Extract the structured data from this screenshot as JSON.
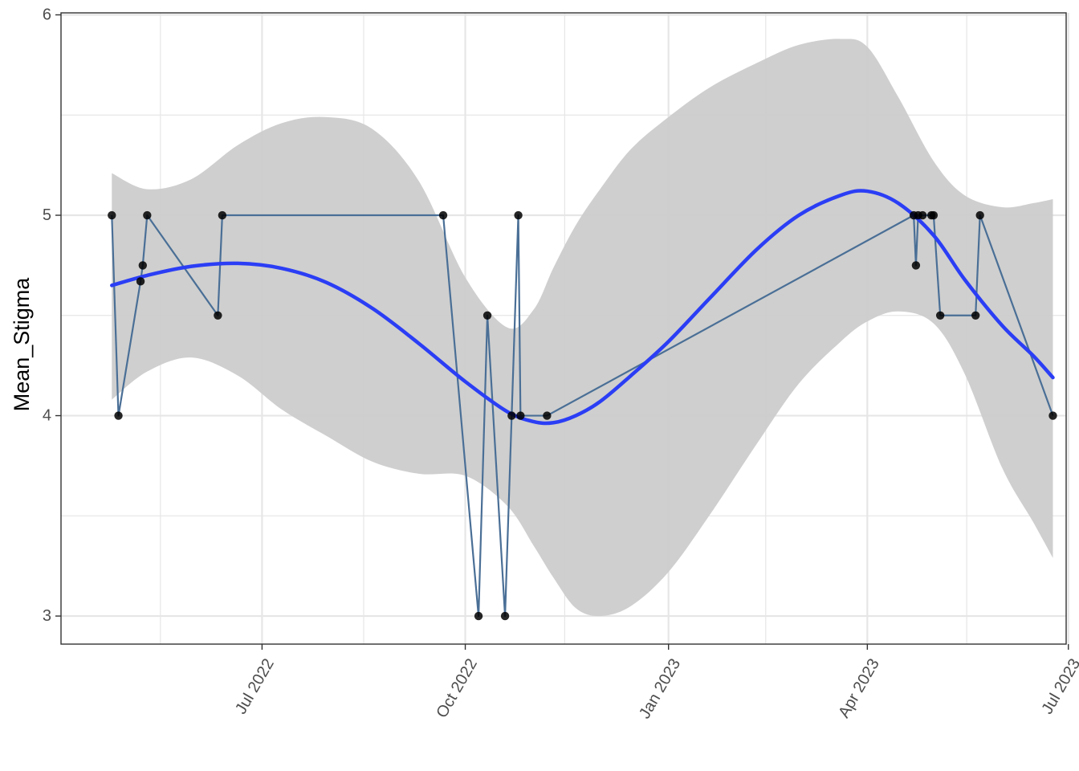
{
  "chart_data": {
    "type": "line",
    "title": "",
    "xlabel": "",
    "ylabel": "Mean_Stigma",
    "x_axis": {
      "type": "date",
      "range": [
        "2022-04-01",
        "2023-06-30"
      ],
      "ticks": [
        {
          "date": "2022-07-01",
          "label": "Jul 2022"
        },
        {
          "date": "2022-10-01",
          "label": "Oct 2022"
        },
        {
          "date": "2023-01-01",
          "label": "Jan 2023"
        },
        {
          "date": "2023-04-01",
          "label": "Apr 2023"
        },
        {
          "date": "2023-07-01",
          "label": "Jul 2023"
        }
      ],
      "minor_ticks": [
        "2022-05-16",
        "2022-08-16",
        "2022-11-15",
        "2023-02-14",
        "2023-05-16"
      ]
    },
    "y_axis": {
      "range": [
        2.86,
        6.01
      ],
      "ticks": [
        3,
        4,
        5,
        6
      ],
      "minor_ticks": [
        3.5,
        4.5,
        5.5
      ]
    },
    "grid": true,
    "legend": "none",
    "colors": {
      "observed_line": "#4a6f96",
      "points": "#000000",
      "smooth_line": "#2b3ef5",
      "ribbon": "#cccccc",
      "grid": "#e6e6e6",
      "panel_border": "#333333"
    },
    "series": [
      {
        "kind": "observed",
        "points": [
          {
            "x": "2022-04-24",
            "y": 5
          },
          {
            "x": "2022-04-27",
            "y": 4
          },
          {
            "x": "2022-05-07",
            "y": 4.67
          },
          {
            "x": "2022-05-08",
            "y": 4.75
          },
          {
            "x": "2022-05-10",
            "y": 5
          },
          {
            "x": "2022-06-11",
            "y": 4.5
          },
          {
            "x": "2022-06-13",
            "y": 5
          },
          {
            "x": "2022-09-21",
            "y": 5
          },
          {
            "x": "2022-10-07",
            "y": 3
          },
          {
            "x": "2022-10-11",
            "y": 4.5
          },
          {
            "x": "2022-10-19",
            "y": 3
          },
          {
            "x": "2022-10-22",
            "y": 4
          },
          {
            "x": "2022-10-25",
            "y": 5
          },
          {
            "x": "2022-10-26",
            "y": 4
          },
          {
            "x": "2022-11-07",
            "y": 4
          },
          {
            "x": "2023-04-22",
            "y": 5
          },
          {
            "x": "2023-04-23",
            "y": 4.75
          },
          {
            "x": "2023-04-24",
            "y": 5
          },
          {
            "x": "2023-04-26",
            "y": 5
          },
          {
            "x": "2023-04-30",
            "y": 5
          },
          {
            "x": "2023-05-01",
            "y": 5
          },
          {
            "x": "2023-05-04",
            "y": 4.5
          },
          {
            "x": "2023-05-20",
            "y": 4.5
          },
          {
            "x": "2023-05-22",
            "y": 5
          },
          {
            "x": "2023-06-24",
            "y": 4
          }
        ]
      },
      {
        "kind": "smooth",
        "points": [
          {
            "x": "2022-04-24",
            "y": 4.65,
            "lo": 4.08,
            "hi": 5.21
          },
          {
            "x": "2022-05-10",
            "y": 4.7,
            "lo": 4.22,
            "hi": 5.13
          },
          {
            "x": "2022-05-30",
            "y": 4.745,
            "lo": 4.29,
            "hi": 5.18
          },
          {
            "x": "2022-06-20",
            "y": 4.76,
            "lo": 4.2,
            "hi": 5.35
          },
          {
            "x": "2022-07-10",
            "y": 4.735,
            "lo": 4.03,
            "hi": 5.46
          },
          {
            "x": "2022-07-30",
            "y": 4.665,
            "lo": 3.9,
            "hi": 5.49
          },
          {
            "x": "2022-08-20",
            "y": 4.535,
            "lo": 3.77,
            "hi": 5.43
          },
          {
            "x": "2022-09-10",
            "y": 4.36,
            "lo": 3.71,
            "hi": 5.17
          },
          {
            "x": "2022-10-01",
            "y": 4.17,
            "lo": 3.7,
            "hi": 4.69
          },
          {
            "x": "2022-10-20",
            "y": 4.02,
            "lo": 3.55,
            "hi": 4.44
          },
          {
            "x": "2022-11-01",
            "y": 3.97,
            "lo": 3.35,
            "hi": 4.53
          },
          {
            "x": "2022-11-10",
            "y": 3.965,
            "lo": 3.19,
            "hi": 4.74
          },
          {
            "x": "2022-11-20",
            "y": 4.0,
            "lo": 3.04,
            "hi": 4.95
          },
          {
            "x": "2022-12-01",
            "y": 4.07,
            "lo": 3.0,
            "hi": 5.13
          },
          {
            "x": "2022-12-15",
            "y": 4.2,
            "lo": 3.05,
            "hi": 5.33
          },
          {
            "x": "2023-01-01",
            "y": 4.37,
            "lo": 3.22,
            "hi": 5.49
          },
          {
            "x": "2023-01-20",
            "y": 4.59,
            "lo": 3.51,
            "hi": 5.64
          },
          {
            "x": "2023-02-10",
            "y": 4.83,
            "lo": 3.86,
            "hi": 5.76
          },
          {
            "x": "2023-03-01",
            "y": 5.0,
            "lo": 4.16,
            "hi": 5.85
          },
          {
            "x": "2023-03-20",
            "y": 5.1,
            "lo": 4.37,
            "hi": 5.88
          },
          {
            "x": "2023-04-01",
            "y": 5.12,
            "lo": 4.47,
            "hi": 5.84
          },
          {
            "x": "2023-04-15",
            "y": 5.06,
            "lo": 4.52,
            "hi": 5.59
          },
          {
            "x": "2023-05-01",
            "y": 4.9,
            "lo": 4.46,
            "hi": 5.27
          },
          {
            "x": "2023-05-15",
            "y": 4.68,
            "lo": 4.21,
            "hi": 5.1
          },
          {
            "x": "2023-06-01",
            "y": 4.45,
            "lo": 3.74,
            "hi": 5.04
          },
          {
            "x": "2023-06-15",
            "y": 4.3,
            "lo": 3.47,
            "hi": 5.06
          },
          {
            "x": "2023-06-24",
            "y": 4.19,
            "lo": 3.29,
            "hi": 5.08
          }
        ]
      }
    ]
  }
}
